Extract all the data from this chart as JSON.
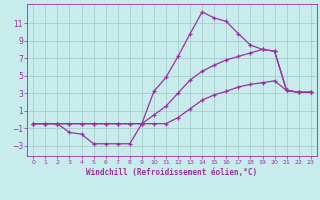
{
  "xlabel": "Windchill (Refroidissement éolien,°C)",
  "bg_color": "#c8ecec",
  "line_color": "#9b30a0",
  "grid_color": "#a0c8c8",
  "xlim": [
    -0.5,
    23.5
  ],
  "ylim": [
    -4.2,
    13.2
  ],
  "xticks": [
    0,
    1,
    2,
    3,
    4,
    5,
    6,
    7,
    8,
    9,
    10,
    11,
    12,
    13,
    14,
    15,
    16,
    17,
    18,
    19,
    20,
    21,
    22,
    23
  ],
  "yticks": [
    -3,
    -1,
    1,
    3,
    5,
    7,
    9,
    11
  ],
  "series1_x": [
    0,
    1,
    2,
    3,
    4,
    5,
    6,
    7,
    8,
    9,
    10,
    11,
    12,
    13,
    14,
    15,
    16,
    17,
    18,
    19,
    20,
    21,
    22,
    23
  ],
  "series1_y": [
    -0.5,
    -0.5,
    -0.5,
    -1.5,
    -1.7,
    -2.8,
    -2.8,
    -2.8,
    -2.8,
    -0.5,
    3.2,
    4.8,
    7.2,
    9.8,
    12.3,
    11.6,
    11.2,
    9.8,
    8.5,
    8.0,
    7.8,
    3.3,
    3.1,
    3.1
  ],
  "series2_x": [
    0,
    1,
    2,
    3,
    4,
    5,
    6,
    7,
    8,
    9,
    10,
    11,
    12,
    13,
    14,
    15,
    16,
    17,
    18,
    19,
    20,
    21,
    22,
    23
  ],
  "series2_y": [
    -0.5,
    -0.5,
    -0.5,
    -0.5,
    -0.5,
    -0.5,
    -0.5,
    -0.5,
    -0.5,
    -0.5,
    0.5,
    1.5,
    3.0,
    4.5,
    5.5,
    6.2,
    6.8,
    7.2,
    7.6,
    8.0,
    7.8,
    3.3,
    3.1,
    3.1
  ],
  "series3_x": [
    0,
    1,
    2,
    3,
    4,
    5,
    6,
    7,
    8,
    9,
    10,
    11,
    12,
    13,
    14,
    15,
    16,
    17,
    18,
    19,
    20,
    21,
    22,
    23
  ],
  "series3_y": [
    -0.5,
    -0.5,
    -0.5,
    -0.5,
    -0.5,
    -0.5,
    -0.5,
    -0.5,
    -0.5,
    -0.5,
    -0.5,
    -0.5,
    0.2,
    1.2,
    2.2,
    2.8,
    3.2,
    3.7,
    4.0,
    4.2,
    4.4,
    3.3,
    3.1,
    3.1
  ]
}
